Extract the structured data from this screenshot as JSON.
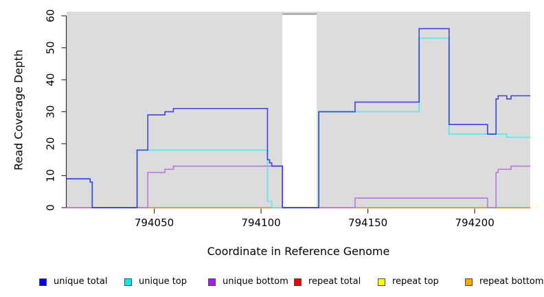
{
  "chart_data": {
    "type": "line",
    "subtype": "step-coverage-plot",
    "title": "",
    "xlabel": "Coordinate in Reference Genome",
    "ylabel": "Read Coverage Depth",
    "xlim": [
      794009,
      794226
    ],
    "ylim": [
      0,
      61
    ],
    "x_ticks": [
      794050,
      794100,
      794150,
      794200
    ],
    "y_ticks": [
      0,
      10,
      20,
      30,
      40,
      50,
      60
    ],
    "grid": "off",
    "plot_background": "#DCDCDC",
    "mask_region": {
      "x0": 794110,
      "x1": 794126,
      "fill": "#FFFFFF",
      "top_border": "#9A9A9A"
    },
    "legend_position": "bottom",
    "legend": [
      {
        "label": "unique total",
        "color": "#0000EE"
      },
      {
        "label": "unique top",
        "color": "#00EEEE"
      },
      {
        "label": "unique bottom",
        "color": "#A020F0"
      },
      {
        "label": "repeat total",
        "color": "#EE0000"
      },
      {
        "label": "repeat top",
        "color": "#FFFF00"
      },
      {
        "label": "repeat bottom",
        "color": "#FFA500"
      }
    ],
    "series": [
      {
        "name": "repeat total",
        "line_color": "#E0556E",
        "steps": [
          [
            794009,
            0
          ],
          [
            794226,
            0
          ]
        ]
      },
      {
        "name": "repeat top",
        "line_color": "#EEEE00",
        "steps": [
          [
            794009,
            0
          ],
          [
            794226,
            0
          ]
        ]
      },
      {
        "name": "repeat bottom",
        "line_color": "#FF9900",
        "steps": [
          [
            794009,
            0
          ],
          [
            794226,
            0
          ]
        ]
      },
      {
        "name": "unique top",
        "line_color": "#5CE9E9",
        "steps": [
          [
            794009,
            9
          ],
          [
            794020,
            8
          ],
          [
            794021,
            0
          ],
          [
            794042,
            18
          ],
          [
            794103,
            2
          ],
          [
            794105,
            0
          ],
          [
            794127,
            30
          ],
          [
            794174,
            53
          ],
          [
            794188,
            23
          ],
          [
            794215,
            22
          ],
          [
            794226,
            22
          ]
        ]
      },
      {
        "name": "unique bottom",
        "line_color": "#BA7BDC",
        "steps": [
          [
            794009,
            0
          ],
          [
            794047,
            11
          ],
          [
            794055,
            12
          ],
          [
            794059,
            13
          ],
          [
            794110,
            0
          ],
          [
            794144,
            3
          ],
          [
            794206,
            0
          ],
          [
            794210,
            11
          ],
          [
            794211,
            12
          ],
          [
            794217,
            13
          ],
          [
            794226,
            13
          ]
        ]
      },
      {
        "name": "unique total",
        "line_color": "#2B2BD5",
        "steps": [
          [
            794009,
            9
          ],
          [
            794020,
            8
          ],
          [
            794021,
            0
          ],
          [
            794042,
            18
          ],
          [
            794047,
            29
          ],
          [
            794055,
            30
          ],
          [
            794059,
            31
          ],
          [
            794103,
            15
          ],
          [
            794104,
            14
          ],
          [
            794105,
            13
          ],
          [
            794110,
            0
          ],
          [
            794127,
            30
          ],
          [
            794144,
            33
          ],
          [
            794174,
            56
          ],
          [
            794188,
            26
          ],
          [
            794206,
            23
          ],
          [
            794210,
            34
          ],
          [
            794211,
            35
          ],
          [
            794215,
            34
          ],
          [
            794217,
            35
          ],
          [
            794226,
            35
          ]
        ]
      }
    ],
    "baseline_segments": [
      {
        "x0": 794009,
        "x1": 794021,
        "color": "#E0556E"
      },
      {
        "x0": 794021,
        "x1": 794042,
        "color": "#8878E8"
      },
      {
        "x0": 794042,
        "x1": 794047,
        "color": "#E0556E"
      },
      {
        "x0": 794047,
        "x1": 794105,
        "color": "#FF9900"
      },
      {
        "x0": 794105,
        "x1": 794110,
        "color": "#55CC99"
      },
      {
        "x0": 794110,
        "x1": 794127,
        "color": "#6E5FD6"
      },
      {
        "x0": 794127,
        "x1": 794144,
        "color": "#E0556E"
      },
      {
        "x0": 794144,
        "x1": 794206,
        "color": "#FF9900"
      },
      {
        "x0": 794206,
        "x1": 794210,
        "color": "#C04488"
      },
      {
        "x0": 794210,
        "x1": 794226,
        "color": "#FF9900"
      }
    ]
  }
}
